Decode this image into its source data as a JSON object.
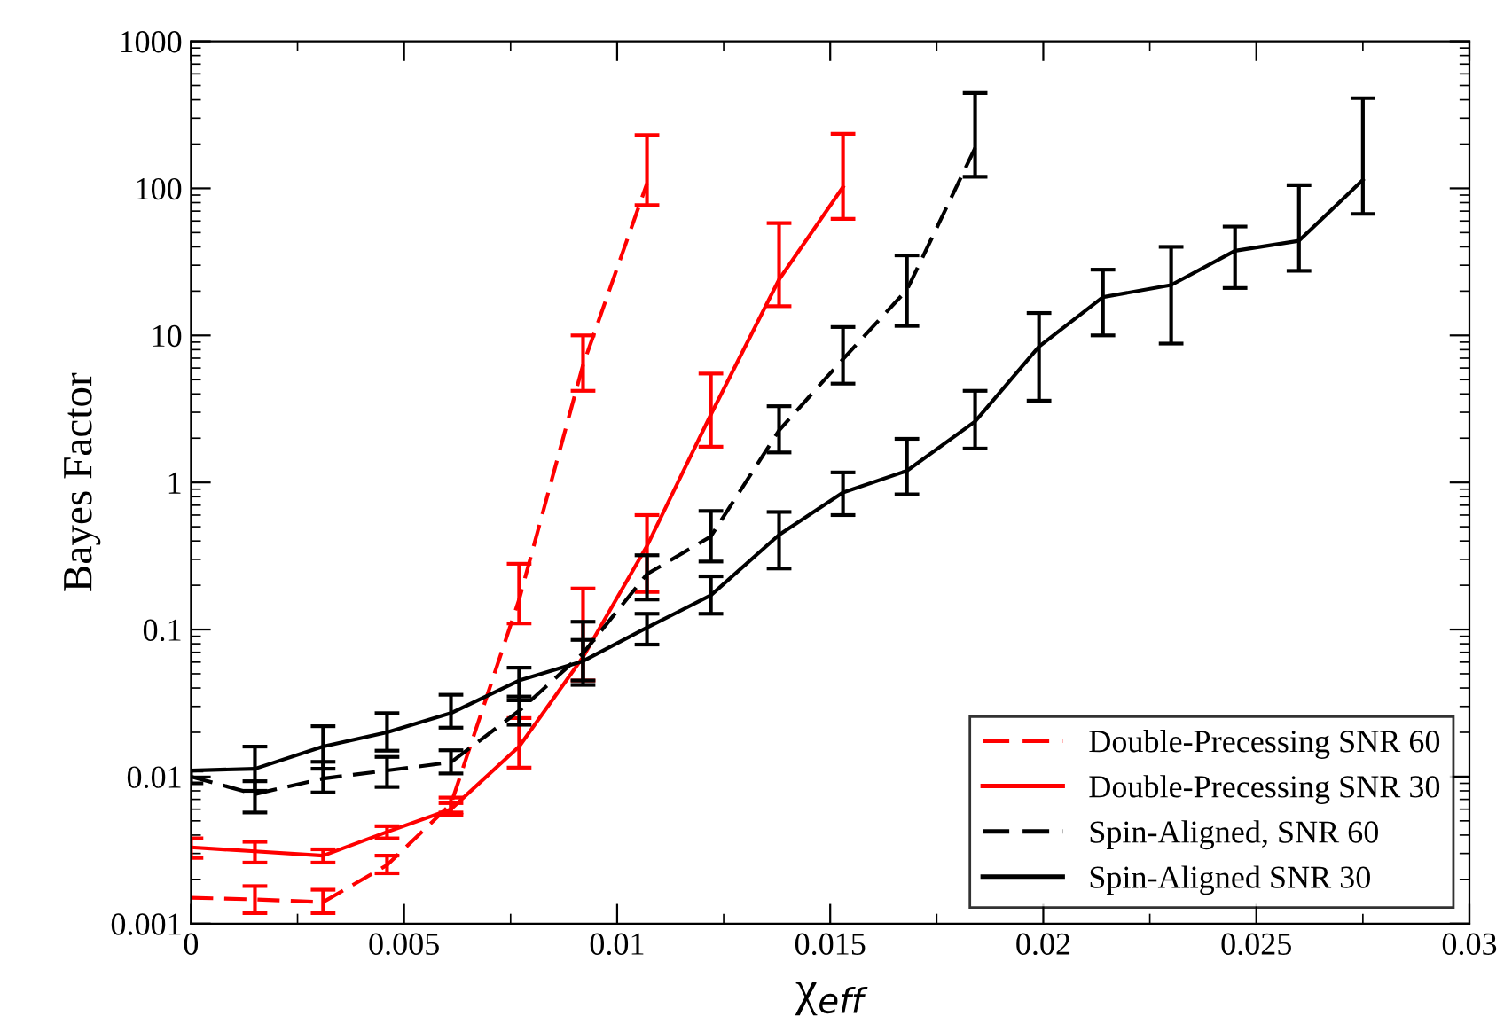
{
  "chart_data": {
    "type": "line",
    "xlabel": "χ$_{eff}$",
    "ylabel": "Bayes Factor",
    "log": "y",
    "xlim": [
      0,
      0.03
    ],
    "ylim": [
      0.001,
      1000
    ],
    "xticks": [
      0,
      0.005,
      0.01,
      0.015,
      0.02,
      0.025,
      0.03
    ],
    "yticks": [
      0.001,
      0.01,
      0.1,
      1,
      10,
      100,
      1000
    ],
    "grid": false,
    "legend": "bottom right",
    "marker": "none",
    "series": [
      {
        "name": "Double-Precessing SNR 60",
        "color": "#ff0000",
        "line_style": "dashed",
        "x": [
          0,
          0.0015,
          0.0031,
          0.0046,
          0.0061,
          0.0077,
          0.0092,
          0.0107
        ],
        "values": [
          0.0015,
          0.00146,
          0.0014,
          0.0025,
          0.0065,
          0.16,
          6.3,
          108
        ],
        "errors": [
          null,
          [
            0.00118,
            0.0018
          ],
          [
            0.00118,
            0.0017
          ],
          [
            0.0022,
            0.0029
          ],
          [
            0.0057,
            0.0072
          ],
          [
            0.11,
            0.28
          ],
          [
            4.2,
            10
          ],
          [
            77,
            230
          ]
        ]
      },
      {
        "name": "Double-Precessing SNR 30",
        "color": "#ff0000",
        "line_style": "solid",
        "x": [
          0,
          0.0015,
          0.0031,
          0.0046,
          0.0061,
          0.0077,
          0.0092,
          0.0107,
          0.0122,
          0.0138,
          0.0153
        ],
        "values": [
          0.0033,
          0.0031,
          0.0029,
          0.0042,
          0.006,
          0.016,
          0.065,
          0.37,
          2.9,
          24,
          102
        ],
        "errors": [
          [
            0.0028,
            0.0038
          ],
          [
            0.0026,
            0.0036
          ],
          [
            0.0026,
            0.0032
          ],
          [
            0.0038,
            0.0046
          ],
          [
            0.0055,
            0.0066
          ],
          [
            0.0115,
            0.025
          ],
          [
            0.045,
            0.19
          ],
          [
            0.18,
            0.6
          ],
          [
            1.75,
            5.5
          ],
          [
            15.8,
            58
          ],
          [
            62,
            235
          ]
        ]
      },
      {
        "name": "Spin-Aligned, SNR 60",
        "color": "#000000",
        "line_style": "dashed",
        "x": [
          0,
          0.0015,
          0.0031,
          0.0046,
          0.0061,
          0.0077,
          0.0092,
          0.0107,
          0.0122,
          0.0138,
          0.0153,
          0.0168,
          0.0184
        ],
        "values": [
          0.01,
          0.0076,
          0.0097,
          0.011,
          0.0125,
          0.028,
          0.069,
          0.238,
          0.43,
          2.26,
          6.9,
          20.4,
          188
        ],
        "errors": [
          [
            0.009,
            0.011
          ],
          [
            0.0057,
            0.0093
          ],
          [
            0.0078,
            0.0126
          ],
          [
            0.0085,
            0.0136
          ],
          [
            0.0105,
            0.0151
          ],
          [
            0.0225,
            0.035
          ],
          [
            0.042,
            0.113
          ],
          [
            0.16,
            0.32
          ],
          [
            0.29,
            0.64
          ],
          [
            1.6,
            3.3
          ],
          [
            4.7,
            11.4
          ],
          [
            11.6,
            35
          ],
          [
            120,
            445
          ]
        ]
      },
      {
        "name": "Spin-Aligned SNR 30",
        "color": "#000000",
        "line_style": "solid",
        "x": [
          0,
          0.0015,
          0.0031,
          0.0046,
          0.0061,
          0.0077,
          0.0092,
          0.0107,
          0.0122,
          0.0138,
          0.0153,
          0.0168,
          0.0184,
          0.0199,
          0.0214,
          0.023,
          0.0245,
          0.026,
          0.0275
        ],
        "values": [
          0.011,
          0.0113,
          0.016,
          0.02,
          0.027,
          0.045,
          0.061,
          0.103,
          0.171,
          0.44,
          0.855,
          1.2,
          2.6,
          8.4,
          18.2,
          22,
          37.6,
          44,
          114
        ],
        "errors": [
          null,
          [
            0.008,
            0.016
          ],
          [
            0.0113,
            0.022
          ],
          [
            0.015,
            0.027
          ],
          [
            0.0215,
            0.036
          ],
          [
            0.033,
            0.055
          ],
          [
            0.045,
            0.085
          ],
          [
            0.079,
            0.128
          ],
          [
            0.128,
            0.23
          ],
          [
            0.26,
            0.63
          ],
          [
            0.6,
            1.17
          ],
          [
            0.83,
            1.98
          ],
          [
            1.7,
            4.2
          ],
          [
            3.6,
            14.2
          ],
          [
            10,
            28
          ],
          [
            8.8,
            40
          ],
          [
            21,
            55
          ],
          [
            27.5,
            105
          ],
          [
            67,
            410
          ]
        ]
      }
    ]
  }
}
